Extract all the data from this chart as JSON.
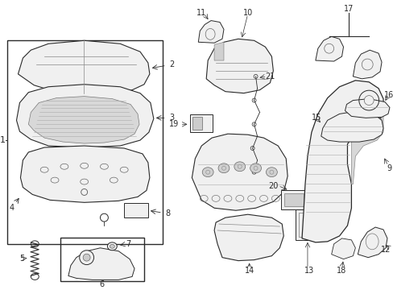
{
  "background_color": "#ffffff",
  "fig_width": 4.89,
  "fig_height": 3.6,
  "dpi": 100,
  "font_size": 7,
  "line_color": "#2a2a2a",
  "fill_light": "#f0f0f0",
  "fill_mid": "#d8d8d8"
}
